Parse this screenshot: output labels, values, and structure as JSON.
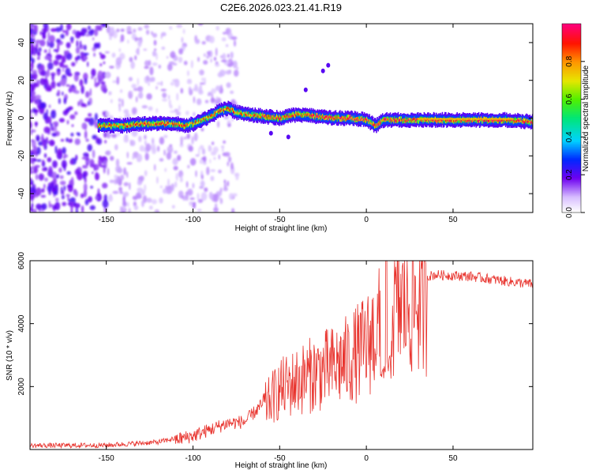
{
  "title": "C2E6.2026.023.21.41.R19",
  "chart_data": [
    {
      "type": "heatmap",
      "name": "spectrogram",
      "xlabel": "Height of straight line (km)",
      "ylabel": "Frequency (Hz)",
      "xlim": [
        -194,
        96
      ],
      "ylim": [
        -50,
        50
      ],
      "xticks": [
        -150,
        -100,
        -50,
        0,
        50
      ],
      "yticks": [
        -40,
        -20,
        0,
        20,
        40
      ],
      "ridge": [
        {
          "x": -150,
          "y": -4
        },
        {
          "x": -140,
          "y": -4
        },
        {
          "x": -130,
          "y": -3
        },
        {
          "x": -120,
          "y": -3
        },
        {
          "x": -110,
          "y": -3
        },
        {
          "x": -105,
          "y": -4
        },
        {
          "x": -100,
          "y": -3
        },
        {
          "x": -95,
          "y": -1
        },
        {
          "x": -90,
          "y": 1
        },
        {
          "x": -85,
          "y": 4
        },
        {
          "x": -80,
          "y": 5
        },
        {
          "x": -75,
          "y": 3
        },
        {
          "x": -70,
          "y": 2
        },
        {
          "x": -60,
          "y": 1
        },
        {
          "x": -50,
          "y": 0
        },
        {
          "x": -40,
          "y": 2
        },
        {
          "x": -30,
          "y": 1
        },
        {
          "x": -20,
          "y": 0
        },
        {
          "x": -10,
          "y": 0
        },
        {
          "x": 0,
          "y": -1
        },
        {
          "x": 5,
          "y": -4
        },
        {
          "x": 10,
          "y": -1
        },
        {
          "x": 20,
          "y": -1
        },
        {
          "x": 40,
          "y": -1
        },
        {
          "x": 60,
          "y": -1
        },
        {
          "x": 80,
          "y": -1
        },
        {
          "x": 96,
          "y": -2
        }
      ],
      "colorbar": {
        "label": "Normalized spectral amplitude",
        "ticks": [
          0.0,
          0.2,
          0.4,
          0.6,
          0.8
        ],
        "range": [
          0,
          1
        ]
      }
    },
    {
      "type": "line",
      "name": "snr",
      "xlabel": "Height of straight line (km)",
      "ylabel": "SNR (10 * v/v)",
      "xlim": [
        -194,
        96
      ],
      "ylim": [
        0,
        6000
      ],
      "xticks": [
        -150,
        -100,
        -50,
        0,
        50
      ],
      "yticks": [
        2000,
        4000,
        6000
      ],
      "color": "#e8332d",
      "envelope": [
        {
          "x": -194,
          "y": 150
        },
        {
          "x": -150,
          "y": 160
        },
        {
          "x": -120,
          "y": 260
        },
        {
          "x": -100,
          "y": 500
        },
        {
          "x": -90,
          "y": 700
        },
        {
          "x": -80,
          "y": 900
        },
        {
          "x": -70,
          "y": 950
        },
        {
          "x": -60,
          "y": 1500
        },
        {
          "x": -50,
          "y": 2200
        },
        {
          "x": -40,
          "y": 2500
        },
        {
          "x": -30,
          "y": 2800
        },
        {
          "x": -20,
          "y": 3000
        },
        {
          "x": -10,
          "y": 3300
        },
        {
          "x": 0,
          "y": 3800
        },
        {
          "x": 5,
          "y": 4300
        },
        {
          "x": 10,
          "y": 4600
        },
        {
          "x": 15,
          "y": 5000
        },
        {
          "x": 20,
          "y": 5300
        },
        {
          "x": 30,
          "y": 5500
        },
        {
          "x": 40,
          "y": 5600
        },
        {
          "x": 60,
          "y": 5550
        },
        {
          "x": 80,
          "y": 5400
        },
        {
          "x": 96,
          "y": 5300
        }
      ]
    }
  ]
}
